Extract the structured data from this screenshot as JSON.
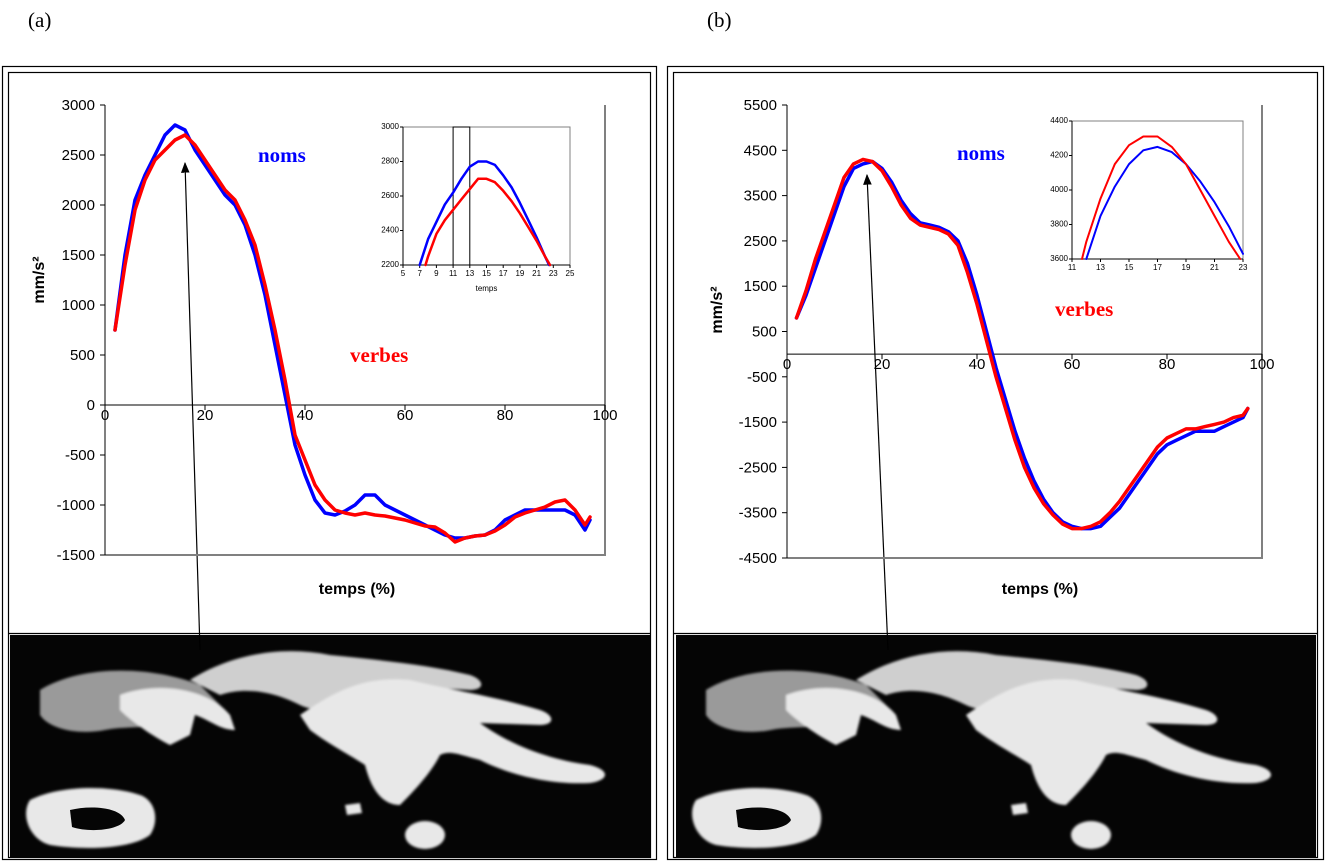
{
  "chart_data": [
    {
      "type": "line",
      "panel": "(a)",
      "xlabel": "temps (%)",
      "ylabel": "mm/s²",
      "x": [
        2,
        4,
        6,
        8,
        10,
        12,
        14,
        16,
        18,
        20,
        22,
        24,
        26,
        28,
        30,
        32,
        34,
        36,
        38,
        40,
        42,
        44,
        46,
        48,
        50,
        52,
        54,
        56,
        58,
        60,
        62,
        64,
        66,
        68,
        70,
        72,
        74,
        76,
        78,
        80,
        82,
        84,
        86,
        88,
        90,
        92,
        94,
        96,
        97
      ],
      "series": [
        {
          "name": "noms",
          "color": "#0000ff",
          "values": [
            750,
            1500,
            2050,
            2300,
            2500,
            2700,
            2800,
            2750,
            2550,
            2400,
            2250,
            2100,
            2000,
            1800,
            1500,
            1100,
            600,
            100,
            -400,
            -700,
            -950,
            -1080,
            -1100,
            -1060,
            -1000,
            -900,
            -900,
            -1000,
            -1050,
            -1100,
            -1150,
            -1200,
            -1250,
            -1300,
            -1330,
            -1330,
            -1310,
            -1300,
            -1250,
            -1150,
            -1100,
            -1050,
            -1050,
            -1050,
            -1050,
            -1050,
            -1100,
            -1250,
            -1150
          ]
        },
        {
          "name": "verbes",
          "color": "#ff0000",
          "values": [
            750,
            1400,
            1950,
            2250,
            2450,
            2550,
            2650,
            2700,
            2600,
            2450,
            2300,
            2150,
            2050,
            1850,
            1600,
            1200,
            750,
            250,
            -300,
            -550,
            -800,
            -950,
            -1050,
            -1080,
            -1100,
            -1080,
            -1100,
            -1110,
            -1130,
            -1150,
            -1180,
            -1210,
            -1220,
            -1280,
            -1370,
            -1330,
            -1310,
            -1300,
            -1260,
            -1200,
            -1120,
            -1080,
            -1050,
            -1020,
            -970,
            -950,
            -1050,
            -1200,
            -1120
          ]
        }
      ],
      "xlim": [
        0,
        100
      ],
      "xticks": [
        0,
        20,
        40,
        60,
        80,
        100
      ],
      "ylim": [
        -1500,
        3000
      ],
      "yticks": [
        -1500,
        -1000,
        -500,
        0,
        500,
        1000,
        1500,
        2000,
        2500,
        3000
      ]
    },
    {
      "type": "line",
      "panel": "(b)",
      "xlabel": "temps (%)",
      "ylabel": "mm/s²",
      "x": [
        2,
        4,
        6,
        8,
        10,
        12,
        14,
        16,
        18,
        20,
        22,
        24,
        26,
        28,
        30,
        32,
        34,
        36,
        38,
        40,
        42,
        44,
        46,
        48,
        50,
        52,
        54,
        56,
        58,
        60,
        62,
        64,
        66,
        68,
        70,
        72,
        74,
        76,
        78,
        80,
        82,
        84,
        86,
        88,
        90,
        92,
        94,
        96,
        97
      ],
      "series": [
        {
          "name": "noms",
          "color": "#0000ff",
          "values": [
            800,
            1300,
            1900,
            2500,
            3100,
            3700,
            4100,
            4200,
            4250,
            4100,
            3800,
            3400,
            3100,
            2900,
            2850,
            2800,
            2700,
            2500,
            2000,
            1300,
            500,
            -300,
            -1000,
            -1700,
            -2300,
            -2800,
            -3200,
            -3500,
            -3700,
            -3800,
            -3850,
            -3850,
            -3800,
            -3600,
            -3400,
            -3100,
            -2800,
            -2500,
            -2200,
            -2000,
            -1900,
            -1800,
            -1700,
            -1700,
            -1700,
            -1600,
            -1500,
            -1400,
            -1200
          ]
        },
        {
          "name": "verbes",
          "color": "#ff0000",
          "values": [
            800,
            1400,
            2100,
            2700,
            3300,
            3900,
            4200,
            4300,
            4250,
            4050,
            3700,
            3300,
            3000,
            2850,
            2800,
            2750,
            2650,
            2400,
            1800,
            1100,
            300,
            -500,
            -1200,
            -1900,
            -2500,
            -2950,
            -3300,
            -3550,
            -3750,
            -3850,
            -3850,
            -3800,
            -3700,
            -3500,
            -3250,
            -2950,
            -2650,
            -2350,
            -2050,
            -1850,
            -1750,
            -1650,
            -1650,
            -1600,
            -1550,
            -1500,
            -1400,
            -1350,
            -1200
          ]
        }
      ],
      "xlim": [
        0,
        100
      ],
      "xticks": [
        0,
        20,
        40,
        60,
        80,
        100
      ],
      "ylim": [
        -4500,
        5500
      ],
      "yticks": [
        -4500,
        -3500,
        -2500,
        -1500,
        -500,
        500,
        1500,
        2500,
        3500,
        4500,
        5500
      ]
    },
    {
      "type": "line",
      "xlabel": "temps",
      "series": [
        {
          "color": "#0000ff",
          "x": [
            7,
            8,
            9,
            10,
            11,
            12,
            13,
            14,
            15,
            16,
            17,
            18,
            19,
            20,
            21,
            22,
            22.5
          ],
          "values": [
            2200,
            2350,
            2450,
            2550,
            2620,
            2700,
            2770,
            2800,
            2800,
            2780,
            2720,
            2650,
            2560,
            2460,
            2360,
            2250,
            2200
          ]
        },
        {
          "color": "#ff0000",
          "x": [
            7.7,
            8,
            9,
            10,
            11,
            12,
            13,
            14,
            15,
            16,
            17,
            18,
            19,
            20,
            21,
            22,
            22.6
          ],
          "values": [
            2200,
            2250,
            2380,
            2460,
            2520,
            2580,
            2640,
            2700,
            2700,
            2680,
            2630,
            2570,
            2500,
            2420,
            2340,
            2250,
            2200
          ]
        }
      ],
      "highlight": [
        11,
        13
      ],
      "xlim": [
        5,
        25
      ],
      "xticks": [
        5,
        7,
        9,
        11,
        13,
        15,
        17,
        19,
        21,
        23,
        25
      ],
      "ylim": [
        2200,
        3000
      ],
      "yticks": [
        2200,
        2400,
        2600,
        2800,
        3000
      ]
    },
    {
      "type": "line",
      "series": [
        {
          "color": "#0000ff",
          "x": [
            12,
            13,
            14,
            15,
            16,
            17,
            18,
            19,
            20,
            21,
            22,
            23
          ],
          "values": [
            3600,
            3850,
            4020,
            4150,
            4230,
            4250,
            4220,
            4150,
            4050,
            3930,
            3790,
            3630
          ]
        },
        {
          "color": "#ff0000",
          "x": [
            11.7,
            12,
            13,
            14,
            15,
            16,
            17,
            18,
            19,
            20,
            21,
            22,
            22.8
          ],
          "values": [
            3600,
            3700,
            3950,
            4150,
            4260,
            4310,
            4310,
            4250,
            4150,
            4000,
            3850,
            3700,
            3600
          ]
        }
      ],
      "xlim": [
        11,
        23
      ],
      "xticks": [
        11,
        13,
        15,
        17,
        19,
        21,
        23
      ],
      "ylim": [
        3600,
        4400
      ],
      "yticks": [
        3600,
        3800,
        4000,
        4200,
        4400
      ]
    }
  ]
}
